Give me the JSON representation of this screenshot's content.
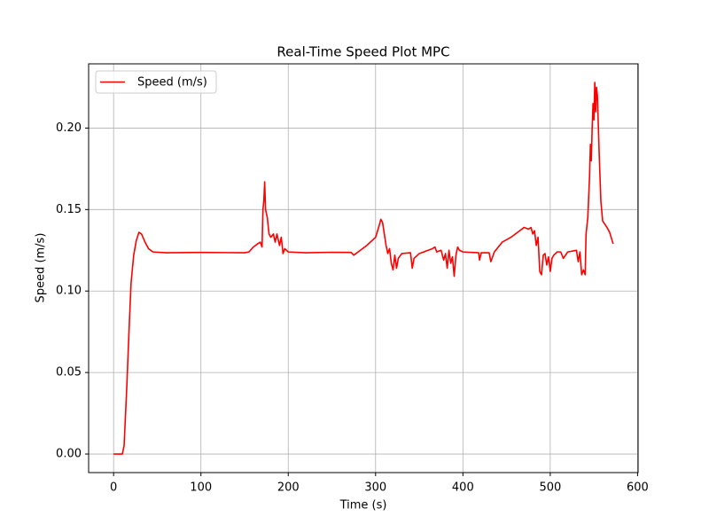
{
  "chart_data": {
    "type": "line",
    "title": "Real-Time Speed Plot MPC",
    "x_label": "Time (s)",
    "y_label": "Speed (m/s)",
    "x": [
      0,
      10,
      12,
      15,
      18,
      20,
      23,
      26,
      29,
      32,
      36,
      40,
      45,
      60,
      100,
      150,
      155,
      160,
      165,
      168,
      170,
      171,
      172,
      173,
      174,
      176,
      178,
      180,
      183,
      185,
      187,
      190,
      192,
      194,
      196,
      200,
      220,
      250,
      272,
      275,
      280,
      290,
      300,
      304,
      306,
      308,
      310,
      312,
      314,
      316,
      318,
      320,
      322,
      324,
      326,
      330,
      340,
      342,
      344,
      350,
      365,
      368,
      370,
      375,
      378,
      380,
      382,
      384,
      386,
      388,
      390,
      392,
      394,
      396,
      400,
      418,
      419,
      421,
      430,
      432,
      436,
      445,
      455,
      465,
      470,
      475,
      478,
      480,
      482,
      484,
      486,
      488,
      490,
      492,
      494,
      496,
      498,
      500,
      502,
      504,
      508,
      512,
      515,
      520,
      530,
      532,
      534,
      536,
      538,
      540,
      541,
      543,
      545,
      546,
      547,
      548,
      549,
      550,
      551,
      552,
      553,
      554,
      556,
      558,
      560,
      565,
      568,
      572
    ],
    "series": [
      {
        "name": "Speed (m/s)",
        "color": "#ff0000",
        "values": [
          0,
          0,
          0.005,
          0.04,
          0.08,
          0.105,
          0.122,
          0.131,
          0.136,
          0.135,
          0.13,
          0.126,
          0.124,
          0.1235,
          0.1237,
          0.1235,
          0.124,
          0.127,
          0.129,
          0.13,
          0.127,
          0.15,
          0.155,
          0.167,
          0.15,
          0.145,
          0.135,
          0.133,
          0.135,
          0.13,
          0.135,
          0.128,
          0.133,
          0.123,
          0.126,
          0.124,
          0.1235,
          0.1238,
          0.1237,
          0.122,
          0.124,
          0.128,
          0.133,
          0.14,
          0.144,
          0.142,
          0.135,
          0.128,
          0.123,
          0.126,
          0.117,
          0.113,
          0.122,
          0.114,
          0.12,
          0.123,
          0.1235,
          0.114,
          0.12,
          0.123,
          0.126,
          0.127,
          0.124,
          0.125,
          0.119,
          0.123,
          0.114,
          0.125,
          0.117,
          0.121,
          0.109,
          0.122,
          0.127,
          0.125,
          0.124,
          0.1235,
          0.119,
          0.1235,
          0.1235,
          0.118,
          0.124,
          0.13,
          0.133,
          0.137,
          0.139,
          0.138,
          0.139,
          0.135,
          0.137,
          0.128,
          0.133,
          0.112,
          0.11,
          0.122,
          0.123,
          0.116,
          0.121,
          0.112,
          0.12,
          0.122,
          0.124,
          0.124,
          0.12,
          0.124,
          0.125,
          0.118,
          0.124,
          0.11,
          0.113,
          0.11,
          0.135,
          0.145,
          0.17,
          0.19,
          0.18,
          0.2,
          0.215,
          0.205,
          0.228,
          0.21,
          0.225,
          0.22,
          0.185,
          0.155,
          0.143,
          0.139,
          0.136,
          0.129
        ]
      }
    ],
    "xlim": [
      -28.6,
      600.6
    ],
    "ylim": [
      -0.0114,
      0.2394
    ],
    "xticks": [
      0,
      100,
      200,
      300,
      400,
      500,
      600
    ],
    "yticks": [
      {
        "value": 0,
        "label": "0.00"
      },
      0.05,
      {
        "value": 0.1,
        "label": "0.10"
      },
      0.15,
      {
        "value": 0.2,
        "label": "0.20"
      }
    ],
    "grid": true,
    "legend": "upper left"
  }
}
